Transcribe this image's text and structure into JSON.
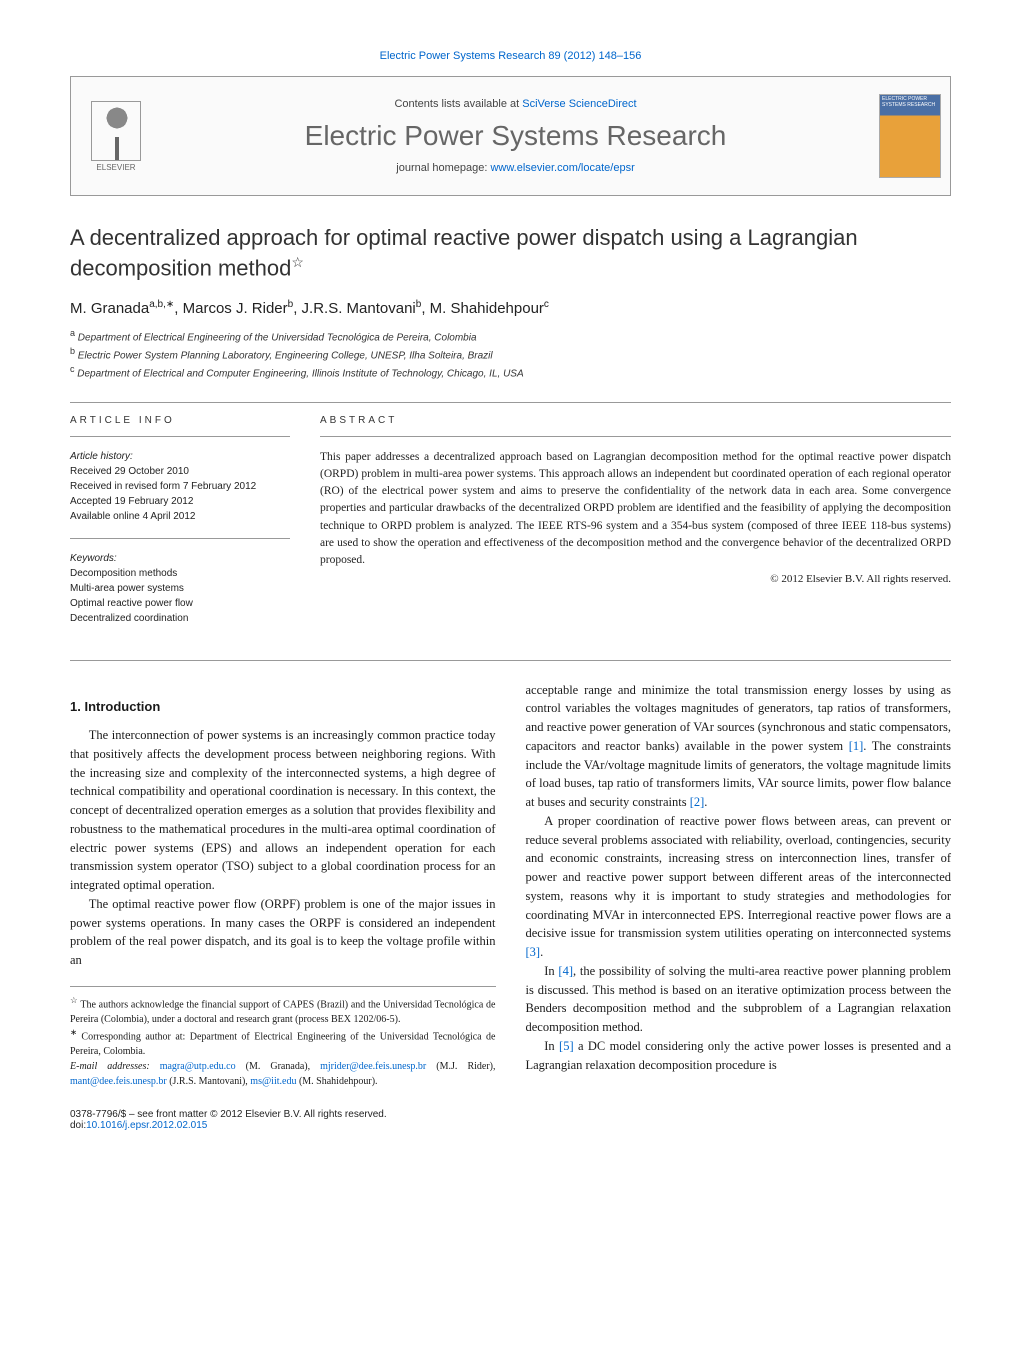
{
  "top_citation": "Electric Power Systems Research 89 (2012) 148–156",
  "header": {
    "contents_prefix": "Contents lists available at ",
    "contents_link": "SciVerse ScienceDirect",
    "journal_name": "Electric Power Systems Research",
    "homepage_prefix": "journal homepage: ",
    "homepage_link": "www.elsevier.com/locate/epsr",
    "elsevier_label": "ELSEVIER",
    "cover_label": "ELECTRIC POWER SYSTEMS RESEARCH"
  },
  "title": "A decentralized approach for optimal reactive power dispatch using a Lagrangian decomposition method",
  "title_star": "☆",
  "authors_html": "M. Granada<sup>a,b,∗</sup>, Marcos J. Rider<sup>b</sup>, J.R.S. Mantovani<sup>b</sup>, M. Shahidehpour<sup>c</sup>",
  "affiliations": [
    {
      "sup": "a",
      "text": "Department of Electrical Engineering of the Universidad Tecnológica de Pereira, Colombia"
    },
    {
      "sup": "b",
      "text": "Electric Power System Planning Laboratory, Engineering College, UNESP, Ilha Solteira, Brazil"
    },
    {
      "sup": "c",
      "text": "Department of Electrical and Computer Engineering, Illinois Institute of Technology, Chicago, IL, USA"
    }
  ],
  "info_label": "article info",
  "abstract_label": "abstract",
  "article_history": {
    "heading": "Article history:",
    "lines": [
      "Received 29 October 2010",
      "Received in revised form 7 February 2012",
      "Accepted 19 February 2012",
      "Available online 4 April 2012"
    ]
  },
  "keywords": {
    "heading": "Keywords:",
    "items": [
      "Decomposition methods",
      "Multi-area power systems",
      "Optimal reactive power flow",
      "Decentralized coordination"
    ]
  },
  "abstract": "This paper addresses a decentralized approach based on Lagrangian decomposition method for the optimal reactive power dispatch (ORPD) problem in multi-area power systems. This approach allows an independent but coordinated operation of each regional operator (RO) of the electrical power system and aims to preserve the confidentiality of the network data in each area. Some convergence properties and particular drawbacks of the decentralized ORPD problem are identified and the feasibility of applying the decomposition technique to ORPD problem is analyzed. The IEEE RTS-96 system and a 354-bus system (composed of three IEEE 118-bus systems) are used to show the operation and effectiveness of the decomposition method and the convergence behavior of the decentralized ORPD proposed.",
  "copyright": "© 2012 Elsevier B.V. All rights reserved.",
  "section1_heading": "1. Introduction",
  "body": {
    "p1": "The interconnection of power systems is an increasingly common practice today that positively affects the development process between neighboring regions. With the increasing size and complexity of the interconnected systems, a high degree of technical compatibility and operational coordination is necessary. In this context, the concept of decentralized operation emerges as a solution that provides flexibility and robustness to the mathematical procedures in the multi-area optimal coordination of electric power systems (EPS) and allows an independent operation for each transmission system operator (TSO) subject to a global coordination process for an integrated optimal operation.",
    "p2a": "The optimal reactive power flow (ORPF) problem is one of the major issues in power systems operations. In many cases the ORPF is considered an independent problem of the real power dispatch, and its goal is to keep the voltage profile within an",
    "p2b": "acceptable range and minimize the total transmission energy losses by using as control variables the voltages magnitudes of generators, tap ratios of transformers, and reactive power generation of VAr sources (synchronous and static compensators, capacitors and reactor banks) available in the power system ",
    "p2c": ". The constraints include the VAr/voltage magnitude limits of generators, the voltage magnitude limits of load buses, tap ratio of transformers limits, VAr source limits, power flow balance at buses and security constraints ",
    "p3": "A proper coordination of reactive power flows between areas, can prevent or reduce several problems associated with reliability, overload, contingencies, security and economic constraints, increasing stress on interconnection lines, transfer of power and reactive power support between different areas of the interconnected system, reasons why it is important to study strategies and methodologies for coordinating MVAr in interconnected EPS. Interregional reactive power flows are a decisive issue for transmission system utilities operating on interconnected systems ",
    "p4a": "In ",
    "p4b": ", the possibility of solving the multi-area reactive power planning problem is discussed. This method is based on an iterative optimization process between the Benders decomposition method and the subproblem of a Lagrangian relaxation decomposition method.",
    "p5a": "In ",
    "p5b": " a DC model considering only the active power losses is presented and a Lagrangian relaxation decomposition procedure is"
  },
  "refs": {
    "r1": "[1]",
    "r2": "[2]",
    "r3": "[3]",
    "r4": "[4]",
    "r5": "[5]"
  },
  "footnotes": {
    "f1_mark": "☆",
    "f1_text": " The authors acknowledge the financial support of CAPES (Brazil) and the Universidad Tecnológica de Pereira (Colombia), under a doctoral and research grant (process BEX 1202/06-5).",
    "f2_mark": "∗",
    "f2_text": " Corresponding author at: Department of Electrical Engineering of the Universidad Tecnológica de Pereira, Colombia.",
    "email_label": "E-mail addresses: ",
    "emails": [
      {
        "addr": "magra@utp.edu.co",
        "who": " (M. Granada), "
      },
      {
        "addr": "mjrider@dee.feis.unesp.br",
        "who": " (M.J. Rider), "
      },
      {
        "addr": "mant@dee.feis.unesp.br",
        "who": " (J.R.S. Mantovani), "
      },
      {
        "addr": "ms@iit.edu",
        "who": " (M. Shahidehpour)."
      }
    ]
  },
  "doi": {
    "line1": "0378-7796/$ – see front matter © 2012 Elsevier B.V. All rights reserved.",
    "prefix": "doi:",
    "link": "10.1016/j.epsr.2012.02.015"
  },
  "colors": {
    "link": "#0066cc",
    "text": "#1a1a1a",
    "rule": "#999999"
  }
}
